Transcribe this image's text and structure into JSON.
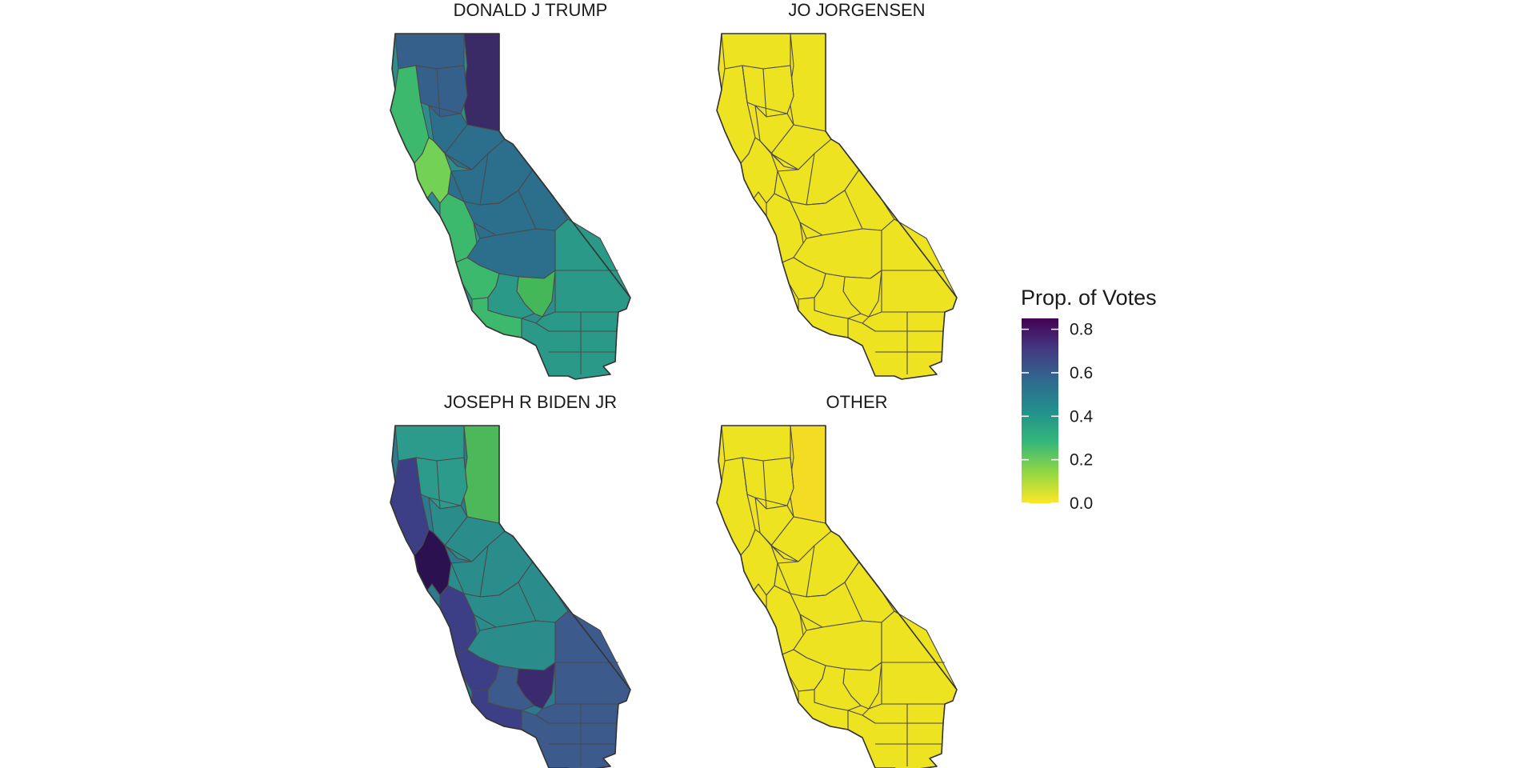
{
  "panels": [
    {
      "title": "DONALD J TRUMP",
      "fill": "#2e8c8b",
      "north": "#35608c",
      "northeast": "#3a2a66",
      "coast": "#3db96e",
      "bay": "#73d255",
      "central": "#2b6f8d",
      "south": "#2a9988",
      "pocket": "#44b858"
    },
    {
      "title": "JO JORGENSEN",
      "fill": "#f0e223",
      "north": "#eee321",
      "northeast": "#eee321",
      "coast": "#eee321",
      "bay": "#eee321",
      "central": "#eee321",
      "south": "#eee321",
      "pocket": "#eee321"
    },
    {
      "title": "JOSEPH R BIDEN JR",
      "fill": "#2d7a8e",
      "north": "#2d9b8b",
      "northeast": "#4db85a",
      "coast": "#3d3f86",
      "bay": "#2b1150",
      "central": "#2a8d8c",
      "south": "#3c5a8c",
      "pocket": "#3b2a6e"
    },
    {
      "title": "OTHER",
      "fill": "#f0e223",
      "north": "#eee321",
      "northeast": "#f4dc24",
      "coast": "#eee321",
      "bay": "#eee321",
      "central": "#eee321",
      "south": "#eee321",
      "pocket": "#eee321"
    }
  ],
  "legend": {
    "title": "Prop. of Votes",
    "ticks": [
      {
        "label": "0.8",
        "value": 0.8
      },
      {
        "label": "0.6",
        "value": 0.6
      },
      {
        "label": "0.4",
        "value": 0.4
      },
      {
        "label": "0.2",
        "value": 0.2
      },
      {
        "label": "0.0",
        "value": 0.0
      }
    ],
    "range": [
      0,
      0.85
    ],
    "colors": [
      "#fde725",
      "#8fd744",
      "#35b779",
      "#21908d",
      "#31688e",
      "#443a83",
      "#440154"
    ]
  }
}
